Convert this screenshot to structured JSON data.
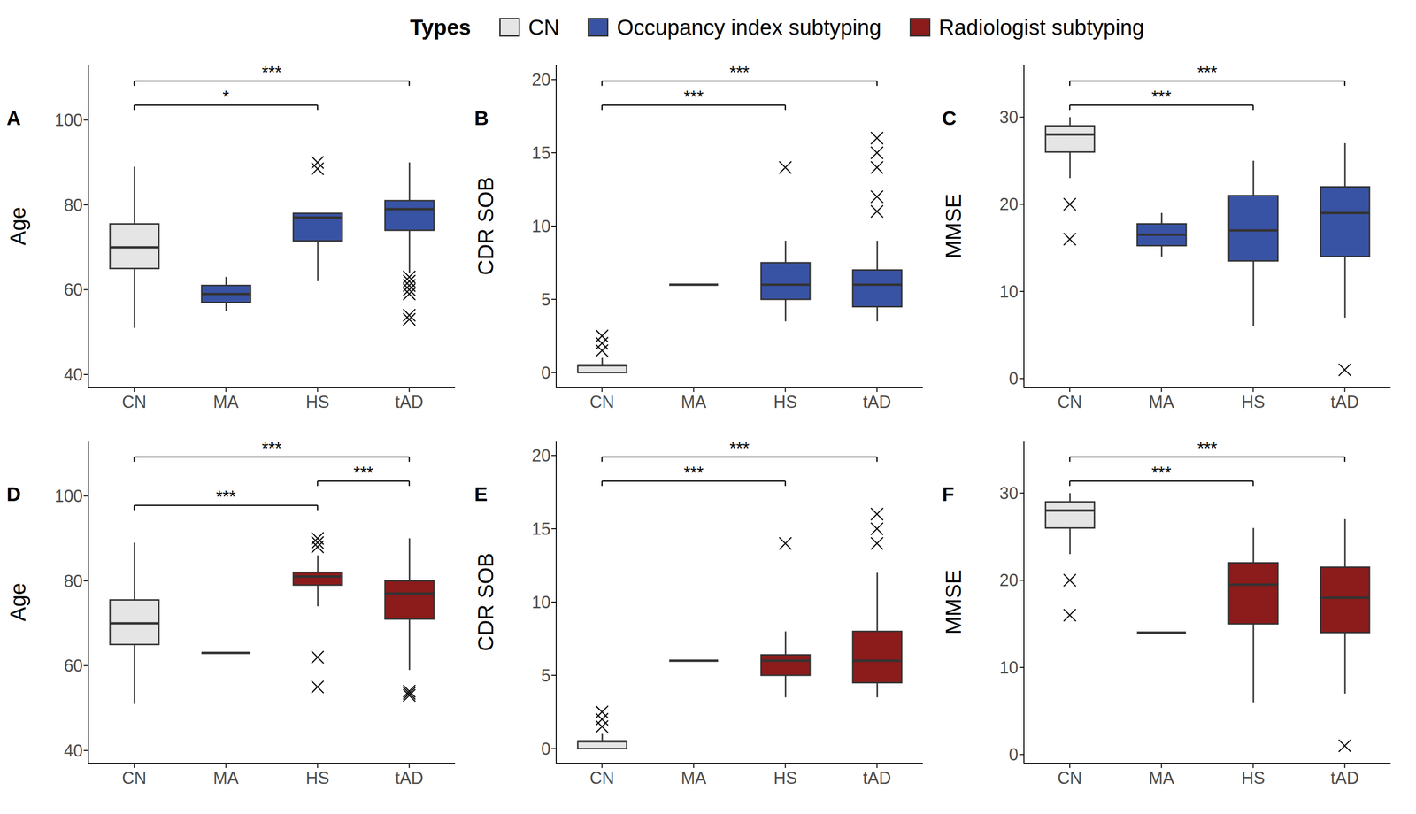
{
  "legend_title": "Types",
  "legend_items": [
    {
      "name": "CN",
      "color": "#e5e5e5"
    },
    {
      "name": "Occupancy index subtyping",
      "color": "#3953a4"
    },
    {
      "name": "Radiologist subtyping",
      "color": "#8c1b1b"
    }
  ],
  "chart_data": [
    {
      "type": "box",
      "panel": "A",
      "ylabel": "Age",
      "categories": [
        "CN",
        "MA",
        "HS",
        "tAD"
      ],
      "colors": [
        "#e5e5e5",
        "#3953a4",
        "#3953a4",
        "#3953a4"
      ],
      "ylim": [
        37,
        113
      ],
      "yticks": [
        40,
        60,
        80,
        100
      ],
      "boxes": [
        {
          "whislo": 51,
          "q1": 65,
          "med": 70,
          "q3": 75.5,
          "whishi": 89,
          "fliers": []
        },
        {
          "whislo": 55,
          "q1": 57,
          "med": 59,
          "q3": 61,
          "whishi": 63,
          "fliers": []
        },
        {
          "whislo": 62,
          "q1": 71.5,
          "med": 77,
          "q3": 78,
          "whishi": 78,
          "fliers": [
            88.5,
            90
          ]
        },
        {
          "whislo": 64,
          "q1": 74,
          "med": 79,
          "q3": 81,
          "whishi": 90,
          "fliers": [
            63,
            62,
            61,
            60,
            59,
            54,
            53
          ]
        }
      ],
      "comparisons": [
        {
          "pair": [
            "CN",
            "tAD"
          ],
          "label": "***"
        },
        {
          "pair": [
            "CN",
            "HS"
          ],
          "label": "*"
        }
      ]
    },
    {
      "type": "box",
      "panel": "B",
      "ylabel": "CDR SOB",
      "categories": [
        "CN",
        "MA",
        "HS",
        "tAD"
      ],
      "colors": [
        "#e5e5e5",
        "#3953a4",
        "#3953a4",
        "#3953a4"
      ],
      "ylim": [
        -1,
        21
      ],
      "yticks": [
        0,
        5,
        10,
        15,
        20
      ],
      "boxes": [
        {
          "whislo": 0,
          "q1": 0,
          "med": 0.5,
          "q3": 0.5,
          "whishi": 1,
          "fliers": [
            1.5,
            2,
            2.5
          ]
        },
        {
          "med": 6,
          "fliers": []
        },
        {
          "whislo": 3.5,
          "q1": 5,
          "med": 6,
          "q3": 7.5,
          "whishi": 9,
          "fliers": [
            14
          ]
        },
        {
          "whislo": 3.5,
          "q1": 4.5,
          "med": 6,
          "q3": 7,
          "whishi": 9,
          "fliers": [
            11,
            12,
            14,
            15,
            16
          ]
        }
      ],
      "comparisons": [
        {
          "pair": [
            "CN",
            "tAD"
          ],
          "label": "***"
        },
        {
          "pair": [
            "CN",
            "HS"
          ],
          "label": "***"
        }
      ]
    },
    {
      "type": "box",
      "panel": "C",
      "ylabel": "MMSE",
      "categories": [
        "CN",
        "MA",
        "HS",
        "tAD"
      ],
      "colors": [
        "#e5e5e5",
        "#3953a4",
        "#3953a4",
        "#3953a4"
      ],
      "ylim": [
        -1,
        36
      ],
      "yticks": [
        0,
        10,
        20,
        30
      ],
      "boxes": [
        {
          "whislo": 23,
          "q1": 26,
          "med": 28,
          "q3": 29,
          "whishi": 30,
          "fliers": [
            20,
            16
          ]
        },
        {
          "whislo": 14,
          "q1": 15.25,
          "med": 16.5,
          "q3": 17.75,
          "whishi": 19,
          "fliers": []
        },
        {
          "whislo": 6,
          "q1": 13.5,
          "med": 17,
          "q3": 21,
          "whishi": 25,
          "fliers": []
        },
        {
          "whislo": 7,
          "q1": 14,
          "med": 19,
          "q3": 22,
          "whishi": 27,
          "fliers": [
            1
          ]
        }
      ],
      "comparisons": [
        {
          "pair": [
            "CN",
            "tAD"
          ],
          "label": "***"
        },
        {
          "pair": [
            "CN",
            "HS"
          ],
          "label": "***"
        }
      ]
    },
    {
      "type": "box",
      "panel": "D",
      "ylabel": "Age",
      "categories": [
        "CN",
        "MA",
        "HS",
        "tAD"
      ],
      "colors": [
        "#e5e5e5",
        "#8c1b1b",
        "#8c1b1b",
        "#8c1b1b"
      ],
      "ylim": [
        37,
        113
      ],
      "yticks": [
        40,
        60,
        80,
        100
      ],
      "boxes": [
        {
          "whislo": 51,
          "q1": 65,
          "med": 70,
          "q3": 75.5,
          "whishi": 89,
          "fliers": []
        },
        {
          "med": 63,
          "fliers": []
        },
        {
          "whislo": 74,
          "q1": 79,
          "med": 81,
          "q3": 82,
          "whishi": 86,
          "fliers": [
            88,
            89,
            90,
            62,
            55
          ]
        },
        {
          "whislo": 59,
          "q1": 71,
          "med": 77,
          "q3": 80,
          "whishi": 90,
          "fliers": [
            54,
            53.5,
            53
          ]
        }
      ],
      "comparisons": [
        {
          "pair": [
            "CN",
            "tAD"
          ],
          "label": "***"
        },
        {
          "pair": [
            "HS",
            "tAD"
          ],
          "label": "***"
        },
        {
          "pair": [
            "CN",
            "HS"
          ],
          "label": "***"
        }
      ]
    },
    {
      "type": "box",
      "panel": "E",
      "ylabel": "CDR SOB",
      "categories": [
        "CN",
        "MA",
        "HS",
        "tAD"
      ],
      "colors": [
        "#e5e5e5",
        "#8c1b1b",
        "#8c1b1b",
        "#8c1b1b"
      ],
      "ylim": [
        -1,
        21
      ],
      "yticks": [
        0,
        5,
        10,
        15,
        20
      ],
      "boxes": [
        {
          "whislo": 0,
          "q1": 0,
          "med": 0.5,
          "q3": 0.5,
          "whishi": 1,
          "fliers": [
            1.5,
            2,
            2.5
          ]
        },
        {
          "med": 6,
          "fliers": []
        },
        {
          "whislo": 3.5,
          "q1": 5,
          "med": 6,
          "q3": 6.4,
          "whishi": 8,
          "fliers": [
            14
          ]
        },
        {
          "whislo": 3.5,
          "q1": 4.5,
          "med": 6,
          "q3": 8,
          "whishi": 12,
          "fliers": [
            14,
            15,
            16
          ]
        }
      ],
      "comparisons": [
        {
          "pair": [
            "CN",
            "tAD"
          ],
          "label": "***"
        },
        {
          "pair": [
            "CN",
            "HS"
          ],
          "label": "***"
        }
      ]
    },
    {
      "type": "box",
      "panel": "F",
      "ylabel": "MMSE",
      "categories": [
        "CN",
        "MA",
        "HS",
        "tAD"
      ],
      "colors": [
        "#e5e5e5",
        "#8c1b1b",
        "#8c1b1b",
        "#8c1b1b"
      ],
      "ylim": [
        -1,
        36
      ],
      "yticks": [
        0,
        10,
        20,
        30
      ],
      "boxes": [
        {
          "whislo": 23,
          "q1": 26,
          "med": 28,
          "q3": 29,
          "whishi": 30,
          "fliers": [
            20,
            16
          ]
        },
        {
          "med": 14,
          "fliers": []
        },
        {
          "whislo": 6,
          "q1": 15,
          "med": 19.5,
          "q3": 22,
          "whishi": 26,
          "fliers": []
        },
        {
          "whislo": 7,
          "q1": 14,
          "med": 18,
          "q3": 21.5,
          "whishi": 27,
          "fliers": [
            1
          ]
        }
      ],
      "comparisons": [
        {
          "pair": [
            "CN",
            "tAD"
          ],
          "label": "***"
        },
        {
          "pair": [
            "CN",
            "HS"
          ],
          "label": "***"
        }
      ]
    }
  ]
}
